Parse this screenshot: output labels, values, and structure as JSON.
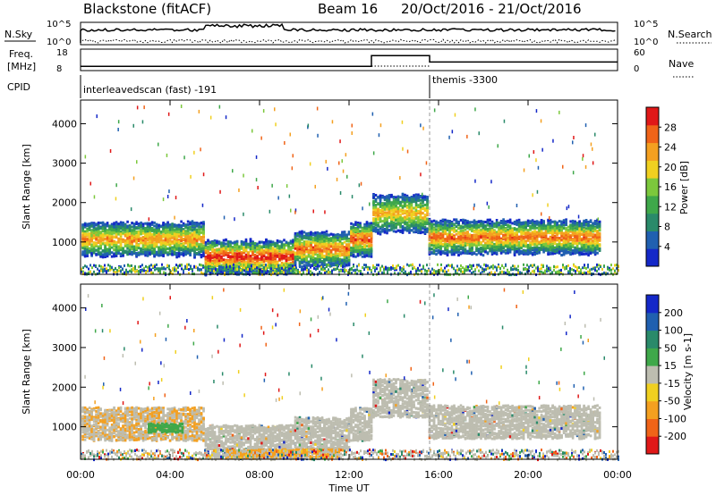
{
  "header": {
    "station": "Blackstone (fitACF)",
    "beam": "Beam 16",
    "dates": "20/Oct/2016 - 21/Oct/2016"
  },
  "panels": {
    "nsky_label": "N.Sky",
    "nsearch_label": "N.Search",
    "nsky_ticks": [
      "10^5",
      "10^0"
    ],
    "nsearch_ticks": [
      "10^5",
      "10^0"
    ],
    "freq_label_1": "Freq.",
    "freq_label_2": "[MHz]",
    "freq_ticks": [
      "18",
      "8"
    ],
    "nave_label": "Nave",
    "nave_ticks": [
      "60",
      "0"
    ],
    "cpid_label": "CPID",
    "cpid_1": "interleavedscan (fast) -191",
    "cpid_2": "themis -3300"
  },
  "axes": {
    "ylabel": "Slant Range [km]",
    "yticks": [
      "4000",
      "3000",
      "2000",
      "1000"
    ],
    "xticks": [
      "00:00",
      "04:00",
      "08:00",
      "12:00",
      "16:00",
      "20:00",
      "00:00"
    ],
    "xlabel": "Time UT"
  },
  "colorbars": {
    "power_label": "Power [dB]",
    "power_ticks": [
      "28",
      "24",
      "20",
      "16",
      "12",
      "8",
      "4"
    ],
    "velocity_label": "Velocity [m s-1]",
    "velocity_ticks": [
      "200",
      "100",
      "50",
      "15",
      "-15",
      "-50",
      "-100",
      "-200"
    ]
  },
  "chart_data": {
    "type": "heatmap",
    "title": "Blackstone (fitACF)  Beam 16  20/Oct/2016 - 21/Oct/2016",
    "xlabel": "Time UT",
    "ylabel": "Slant Range [km]",
    "xlim_hours": [
      0,
      24
    ],
    "ylim_km": [
      180,
      4600
    ],
    "power_scale_db": [
      0,
      30
    ],
    "velocity_scale_ms": [
      -200,
      200
    ],
    "power_bands": [
      {
        "start": 0,
        "end": 5.5,
        "range_km": 1100,
        "peak_db": 22
      },
      {
        "start": 5.5,
        "end": 9.5,
        "range_km": 650,
        "peak_db": 28
      },
      {
        "start": 9.5,
        "end": 12.0,
        "range_km": 850,
        "peak_db": 24
      },
      {
        "start": 12.0,
        "end": 13.0,
        "range_km": 1100,
        "peak_db": 26
      },
      {
        "start": 13.0,
        "end": 15.5,
        "range_km": 1750,
        "peak_db": 20
      },
      {
        "start": 15.5,
        "end": 23.2,
        "range_km": 1150,
        "peak_db": 24
      }
    ],
    "velocity_features": [
      {
        "start": 6.5,
        "end": 11.5,
        "range_km": 350,
        "velocity_ms": -50
      },
      {
        "start": 3.0,
        "end": 4.5,
        "range_km": 1000,
        "velocity_ms": 15
      }
    ],
    "cpid_change_hour": 15.6,
    "freq_mhz": [
      {
        "start": 0,
        "end": 13.0,
        "value": 10
      },
      {
        "start": 13.0,
        "end": 15.6,
        "value": 15
      },
      {
        "start": 15.6,
        "end": 24,
        "value": 12
      }
    ]
  },
  "colors": {
    "power": [
      "#1428c8",
      "#2060b0",
      "#2a8a6a",
      "#3fa84a",
      "#7cc83c",
      "#f0d020",
      "#f4a020",
      "#f06418",
      "#e01818"
    ],
    "velocity": [
      "#e01818",
      "#f06418",
      "#f4a020",
      "#f0d020",
      "#bdbdb0",
      "#3fa84a",
      "#2a8a6a",
      "#2060b0",
      "#1428c8"
    ],
    "ground_scatter": "#bdbdb0"
  }
}
